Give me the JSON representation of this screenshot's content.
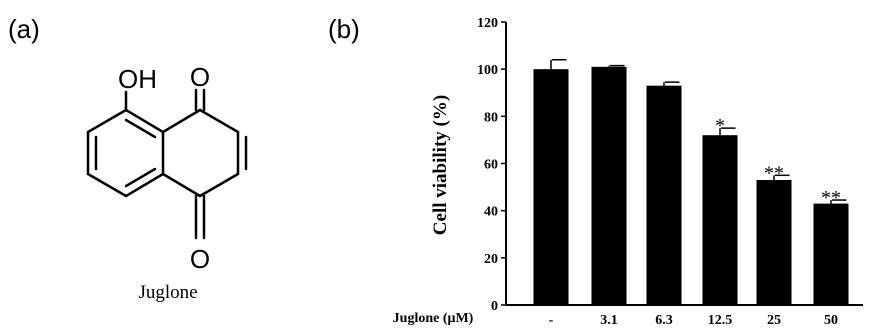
{
  "panel_a": {
    "label": "(a)",
    "oh_label": "OH",
    "o_top_label": "O",
    "o_bottom_label": "O",
    "compound_name": "Juglone"
  },
  "panel_b": {
    "label": "(b)"
  },
  "chart_data": {
    "type": "bar",
    "xlabel": "Juglone (μM)",
    "ylabel": "Cell viability (%)",
    "ylim": [
      0,
      120
    ],
    "yticks": [
      "0",
      "20",
      "40",
      "60",
      "80",
      "100",
      "120"
    ],
    "categories": [
      "-",
      "3.1",
      "6.3",
      "12.5",
      "25",
      "50"
    ],
    "values": [
      100,
      101,
      93,
      72,
      53,
      43
    ],
    "errors": [
      4,
      0.5,
      1.5,
      3,
      2,
      1.5
    ],
    "significance": [
      "",
      "",
      "",
      "*",
      "**",
      "**"
    ],
    "bar_color": "#000000",
    "grid": false
  }
}
